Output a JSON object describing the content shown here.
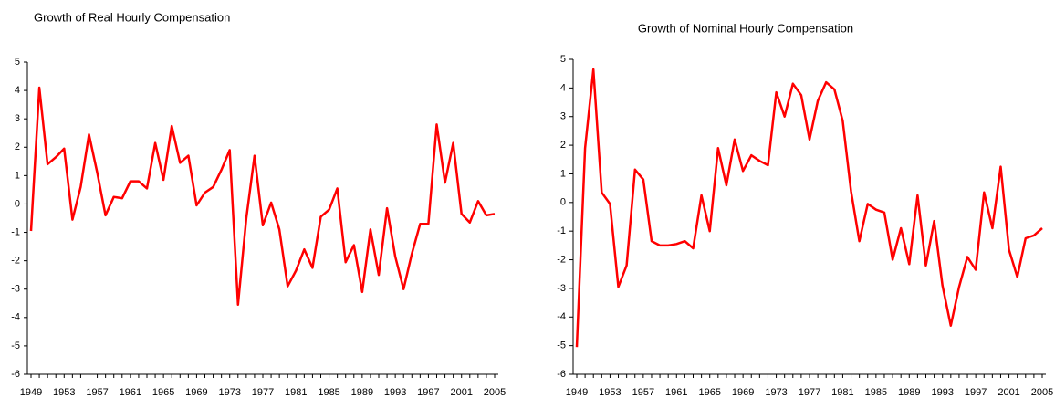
{
  "chart_data": [
    {
      "type": "line",
      "title": "Growth of Real Hourly Compensation",
      "categories": [
        "1949",
        null,
        null,
        null,
        "1953",
        null,
        null,
        null,
        "1957",
        null,
        null,
        null,
        "1961",
        null,
        null,
        null,
        "1965",
        null,
        null,
        null,
        "1969",
        null,
        null,
        null,
        "1973",
        null,
        null,
        null,
        "1977",
        null,
        null,
        null,
        "1981",
        null,
        null,
        null,
        "1985",
        null,
        null,
        null,
        "1989",
        null,
        null,
        null,
        "1993",
        null,
        null,
        null,
        "1997",
        null,
        null,
        null,
        "2001",
        null,
        null,
        null,
        "2005"
      ],
      "series": [
        {
          "name": "Real",
          "color": "#ff0000",
          "values": [
            -0.95,
            4.1,
            1.4,
            1.65,
            1.95,
            -0.55,
            0.6,
            2.45,
            1.1,
            -0.4,
            0.25,
            0.2,
            0.8,
            0.8,
            0.55,
            2.15,
            0.85,
            2.75,
            1.45,
            1.7,
            -0.05,
            0.4,
            0.6,
            1.2,
            1.9,
            -3.55,
            -0.5,
            1.7,
            -0.75,
            0.05,
            -0.9,
            -2.9,
            -2.35,
            -1.6,
            -2.25,
            -0.45,
            -0.2,
            0.55,
            -2.05,
            -1.45,
            -3.1,
            -0.9,
            -2.5,
            -0.15,
            -1.85,
            -3.0,
            -1.75,
            -0.7,
            -0.7,
            2.8,
            0.75,
            2.15,
            -0.35,
            -0.65,
            0.1,
            -0.4,
            -0.35
          ]
        }
      ],
      "ylim": [
        -6,
        5
      ],
      "yticks": [
        -6,
        -5,
        -4,
        -3,
        -2,
        -1,
        0,
        1,
        2,
        3,
        4,
        5
      ]
    },
    {
      "type": "line",
      "title": "Growth of Nominal Hourly Compensation",
      "categories": [
        "1949",
        null,
        null,
        null,
        "1953",
        null,
        null,
        null,
        "1957",
        null,
        null,
        null,
        "1961",
        null,
        null,
        null,
        "1965",
        null,
        null,
        null,
        "1969",
        null,
        null,
        null,
        "1973",
        null,
        null,
        null,
        "1977",
        null,
        null,
        null,
        "1981",
        null,
        null,
        null,
        "1985",
        null,
        null,
        null,
        "1989",
        null,
        null,
        null,
        "1993",
        null,
        null,
        null,
        "1997",
        null,
        null,
        null,
        "2001",
        null,
        null,
        null,
        "2005"
      ],
      "series": [
        {
          "name": "Nominal",
          "color": "#ff0000",
          "values": [
            -5.05,
            1.9,
            4.65,
            0.35,
            -0.05,
            -2.95,
            -2.2,
            1.15,
            0.8,
            -1.35,
            -1.5,
            -1.5,
            -1.45,
            -1.35,
            -1.6,
            0.25,
            -1.0,
            1.9,
            0.6,
            2.2,
            1.1,
            1.65,
            1.45,
            1.3,
            3.85,
            3.0,
            4.15,
            3.75,
            2.2,
            3.55,
            4.2,
            3.95,
            2.85,
            0.4,
            -1.35,
            -0.05,
            -0.25,
            -0.35,
            -2.0,
            -0.9,
            -2.15,
            0.25,
            -2.2,
            -0.65,
            -2.9,
            -4.3,
            -2.95,
            -1.9,
            -2.35,
            0.35,
            -0.9,
            1.25,
            -1.65,
            -2.6,
            -1.25,
            -1.15,
            -0.9
          ]
        }
      ],
      "ylim": [
        -6,
        5
      ],
      "yticks": [
        -6,
        -5,
        -4,
        -3,
        -2,
        -1,
        0,
        1,
        2,
        3,
        4,
        5
      ]
    }
  ]
}
